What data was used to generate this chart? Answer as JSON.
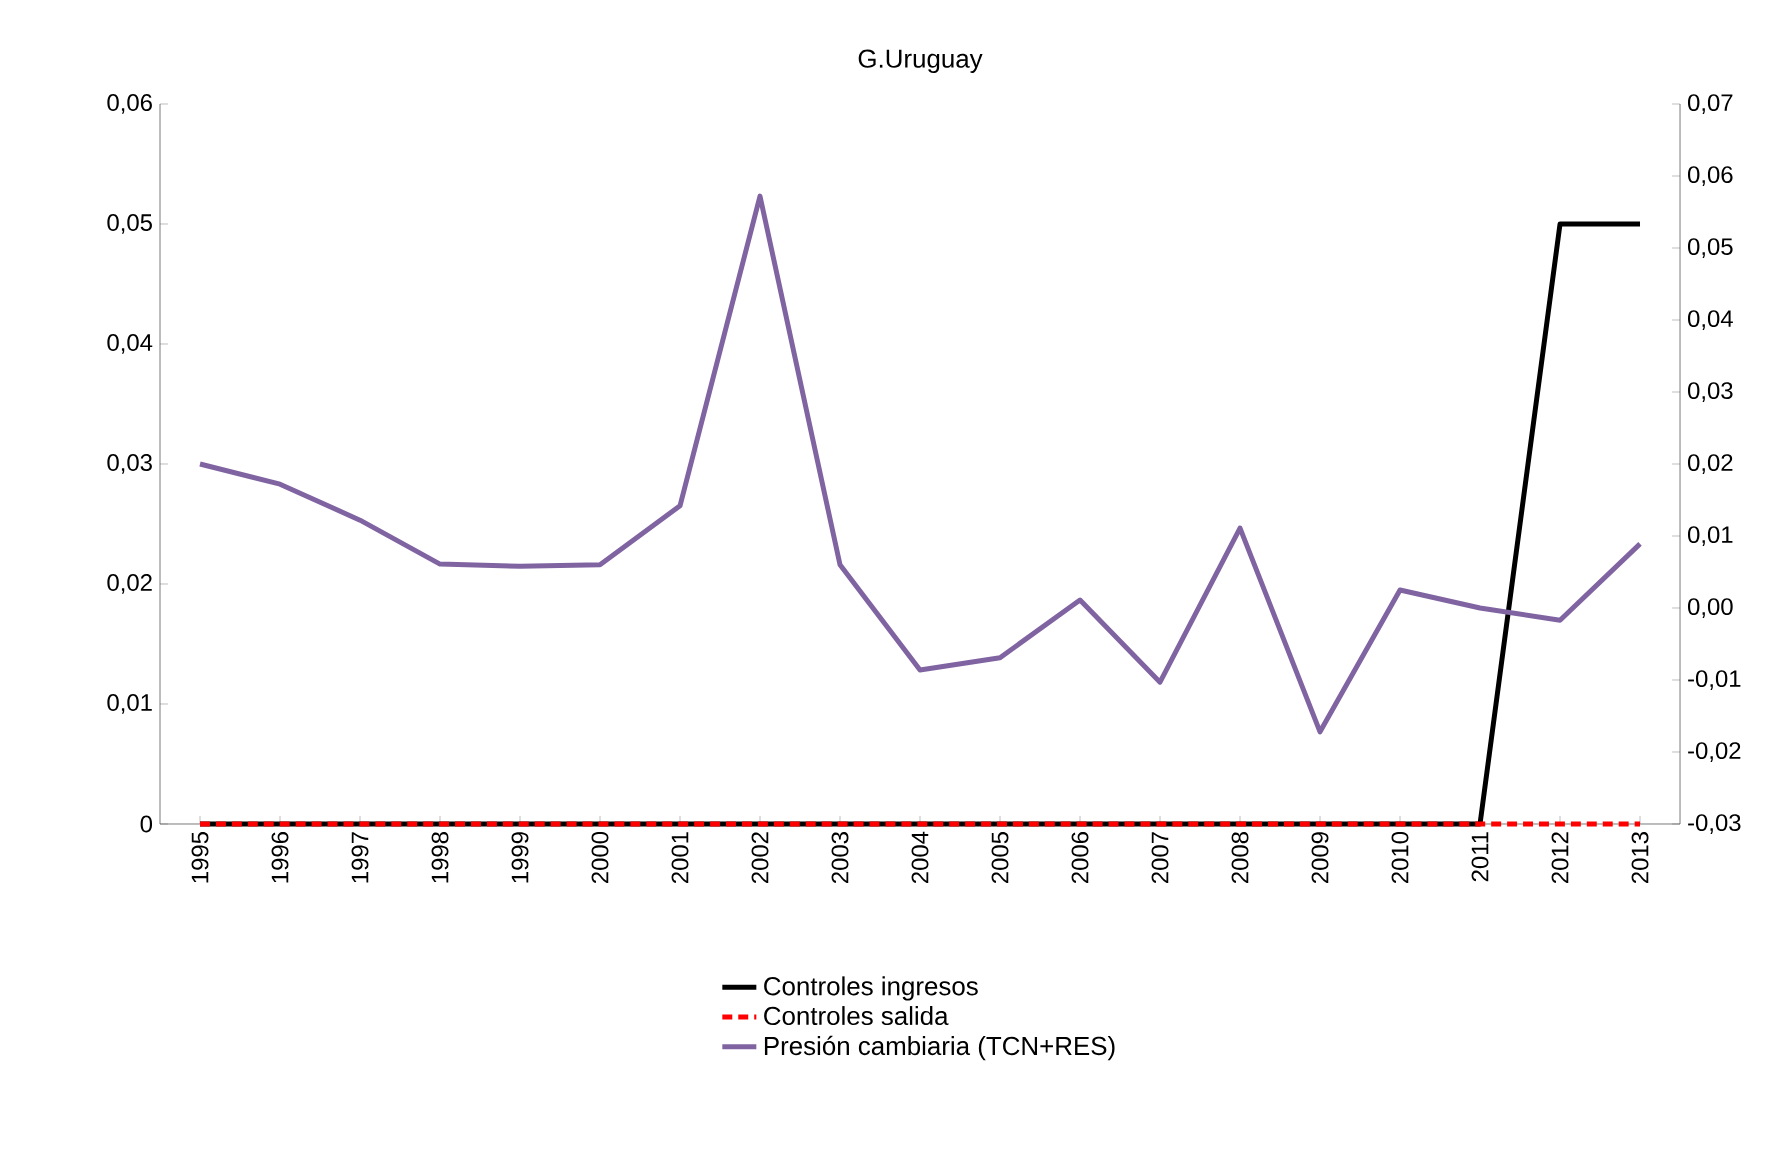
{
  "chart_data": {
    "type": "line",
    "title": "G.Uruguay",
    "categories": [
      "1995",
      "1996",
      "1997",
      "1998",
      "1999",
      "2000",
      "2001",
      "2002",
      "2003",
      "2004",
      "2005",
      "2006",
      "2007",
      "2008",
      "2009",
      "2010",
      "2011",
      "2012",
      "2013"
    ],
    "series": [
      {
        "name": "Controles ingresos",
        "color": "#000000",
        "line_style": "solid",
        "values": [
          0,
          0,
          0,
          0,
          0,
          0,
          0,
          0,
          0,
          0,
          0,
          0,
          0,
          0,
          0,
          0,
          0,
          0.05,
          0.05
        ]
      },
      {
        "name": "Controles salida",
        "color": "#ff0000",
        "line_style": "dashed",
        "values": [
          0,
          0,
          0,
          0,
          0,
          0,
          0,
          0,
          0,
          0,
          0,
          0,
          0,
          0,
          0,
          0,
          0,
          0,
          0
        ]
      },
      {
        "name": "Presión cambiaria (TCN+RES)",
        "color": "#8064a2",
        "line_style": "solid",
        "axis": "y2",
        "values": [
          0.02,
          0.0172,
          0.0122,
          0.0061,
          0.0058,
          0.006,
          0.0142,
          0.0572,
          0.006,
          -0.0086,
          -0.0069,
          0.0011,
          -0.0103,
          0.0111,
          -0.0172,
          0.0025,
          0.0,
          -0.0017,
          0.0089
        ]
      }
    ],
    "ylim": [
      0,
      0.06
    ],
    "yticks": [
      {
        "value": 0,
        "label": "0"
      },
      {
        "value": 0.01,
        "label": "0,01"
      },
      {
        "value": 0.02,
        "label": "0,02"
      },
      {
        "value": 0.03,
        "label": "0,03"
      },
      {
        "value": 0.04,
        "label": "0,04"
      },
      {
        "value": 0.05,
        "label": "0,05"
      },
      {
        "value": 0.06,
        "label": "0,06"
      }
    ],
    "y2lim": [
      -0.03,
      0.07
    ],
    "y2ticks": [
      {
        "value": -0.03,
        "label": "-0,03"
      },
      {
        "value": -0.02,
        "label": "-0,02"
      },
      {
        "value": -0.01,
        "label": "-0,01"
      },
      {
        "value": 0,
        "label": "0,00"
      },
      {
        "value": 0.01,
        "label": "0,01"
      },
      {
        "value": 0.02,
        "label": "0,02"
      },
      {
        "value": 0.03,
        "label": "0,03"
      },
      {
        "value": 0.04,
        "label": "0,04"
      },
      {
        "value": 0.05,
        "label": "0,05"
      },
      {
        "value": 0.06,
        "label": "0,06"
      },
      {
        "value": 0.07,
        "label": "0,07"
      }
    ],
    "grid": false,
    "legend": "bottom",
    "marker": "none"
  }
}
